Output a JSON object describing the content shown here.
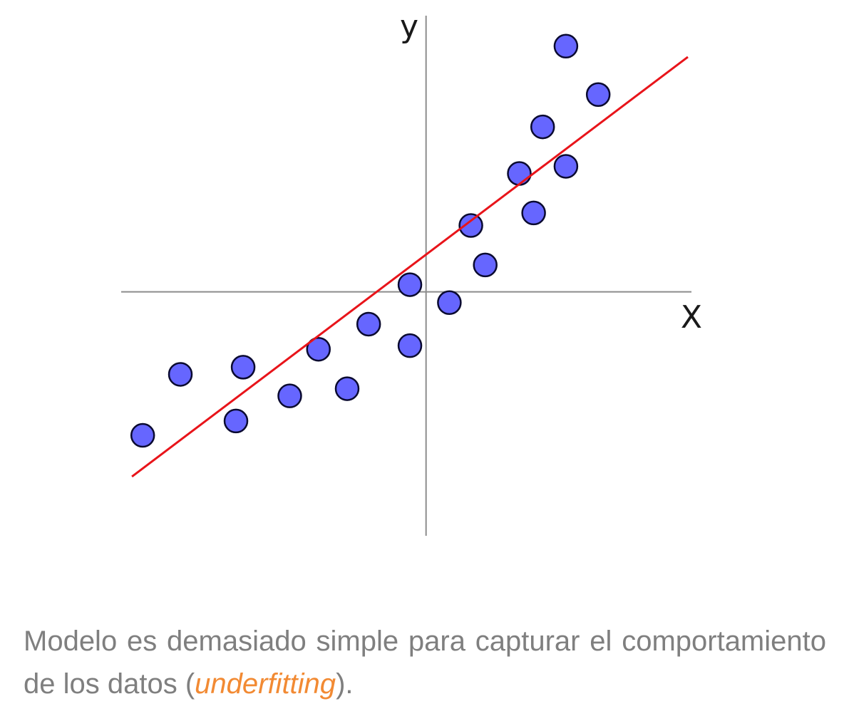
{
  "chart_data": {
    "type": "scatter",
    "title": "",
    "xlabel": "X",
    "ylabel": "y",
    "xlim": [
      -8.5,
      7.4
    ],
    "ylim": [
      -6.8,
      7.7
    ],
    "grid": false,
    "axes_through_origin": true,
    "colors": {
      "points": "#6666ff",
      "point_outline": "#0a0a30",
      "fit_line": "#e8141a",
      "axes": "#8c8c8c"
    },
    "series": [
      {
        "kind": "points",
        "points": [
          {
            "x": -7.9,
            "y": -4.0
          },
          {
            "x": -6.85,
            "y": -2.3
          },
          {
            "x": -5.3,
            "y": -3.6
          },
          {
            "x": -5.1,
            "y": -2.1
          },
          {
            "x": -3.8,
            "y": -2.9
          },
          {
            "x": -3.0,
            "y": -1.6
          },
          {
            "x": -2.2,
            "y": -2.7
          },
          {
            "x": -1.6,
            "y": -0.9
          },
          {
            "x": -0.45,
            "y": -1.5
          },
          {
            "x": -0.45,
            "y": 0.2
          },
          {
            "x": 0.65,
            "y": -0.3
          },
          {
            "x": 1.25,
            "y": 1.85
          },
          {
            "x": 1.65,
            "y": 0.75
          },
          {
            "x": 2.6,
            "y": 3.3
          },
          {
            "x": 3.0,
            "y": 2.2
          },
          {
            "x": 3.25,
            "y": 4.6
          },
          {
            "x": 3.9,
            "y": 3.5
          },
          {
            "x": 3.9,
            "y": 6.85
          },
          {
            "x": 4.8,
            "y": 5.5
          }
        ]
      },
      {
        "kind": "fit_line",
        "from": {
          "x": -8.2,
          "y": -5.15
        },
        "to": {
          "x": 7.3,
          "y": 6.55
        }
      }
    ],
    "axis_labels": {
      "x": "X",
      "y": "y"
    }
  },
  "caption": {
    "text_before": "Modelo es demasiado simple para capturar el comportamiento de los datos (",
    "emphasis": "underfitting",
    "text_after": ").",
    "emphasis_color": "#f28a33"
  }
}
